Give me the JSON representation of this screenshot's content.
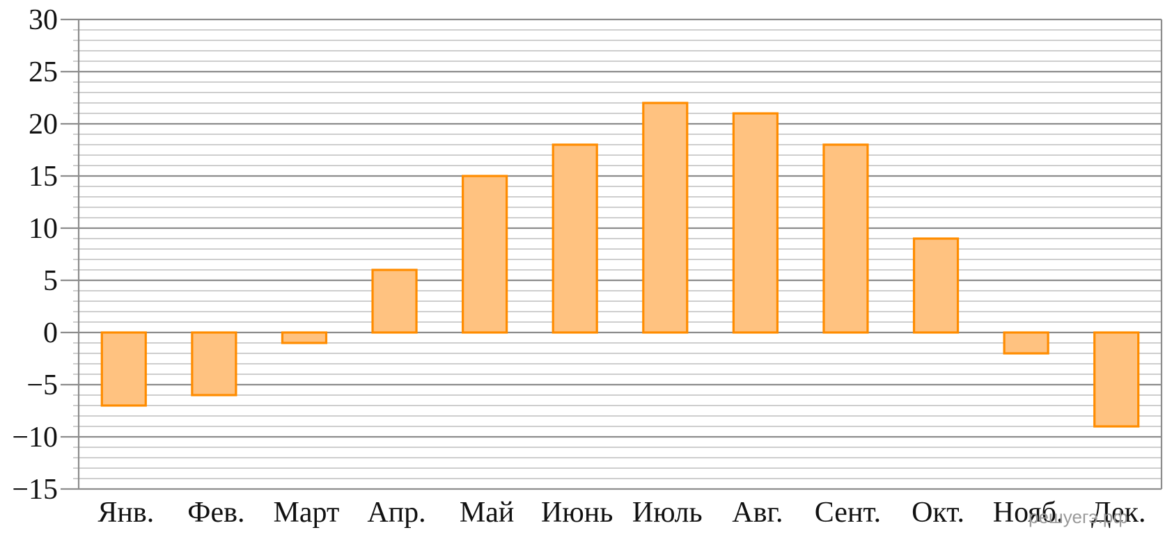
{
  "chart_data": {
    "type": "bar",
    "categories": [
      "Янв.",
      "Фев.",
      "Март",
      "Апр.",
      "Май",
      "Июнь",
      "Июль",
      "Авг.",
      "Сент.",
      "Окт.",
      "Нояб.",
      "Дек."
    ],
    "values": [
      -7,
      -6,
      -1,
      6,
      15,
      18,
      22,
      21,
      18,
      9,
      -2,
      -9
    ],
    "ylim": [
      -15,
      30
    ],
    "yticks": [
      30,
      25,
      20,
      15,
      10,
      5,
      0,
      -5,
      -10,
      -15
    ],
    "ytick_labels": [
      "30",
      "25",
      "20",
      "15",
      "10",
      "5",
      "0",
      "−5",
      "−10",
      "−15"
    ],
    "minor_step": 1,
    "grid": true,
    "legend": "none",
    "colors": {
      "bar_fill": "#ffc280",
      "bar_stroke": "#ff8c00",
      "grid_major": "#8c8c8c",
      "grid_minor": "#bdbdbd",
      "axis": "#8c8c8c"
    }
  },
  "watermark": "решуегэ.рф"
}
